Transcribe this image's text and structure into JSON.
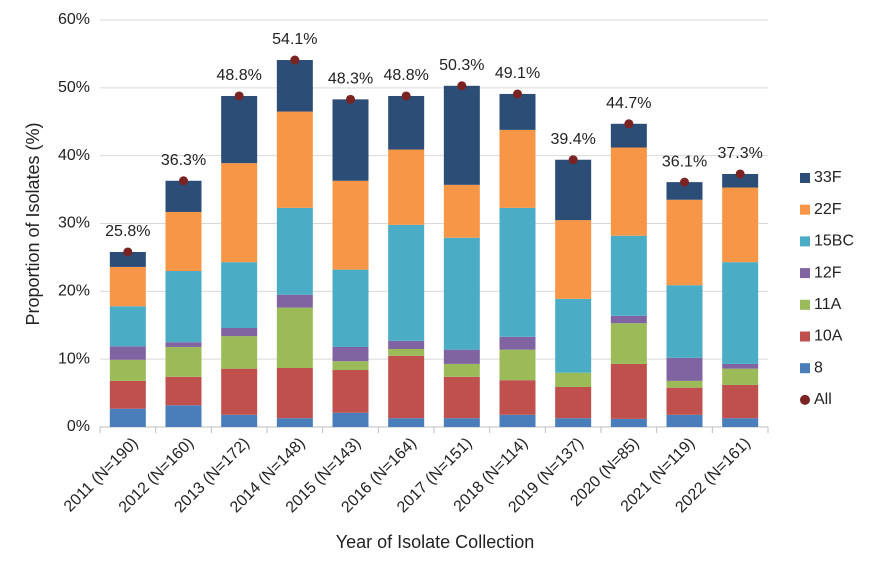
{
  "chart_data": {
    "type": "bar",
    "stacked": true,
    "x_label": "Year of Isolate Collection",
    "y_label": "Proportion of Isolates (%)",
    "categories": [
      "2011 (N=190)",
      "2012 (N=160)",
      "2013 (N=172)",
      "2014 (N=148)",
      "2015 (N=143)",
      "2016 (N=164)",
      "2017 (N=151)",
      "2018 (N=114)",
      "2019 (N=137)",
      "2020 (N=85)",
      "2021 (N=119)",
      "2022 (N=161)"
    ],
    "series": [
      {
        "name": "8",
        "color": "#4a7ebb",
        "values": [
          2.7,
          3.2,
          1.8,
          1.3,
          2.1,
          1.3,
          1.3,
          1.8,
          1.3,
          1.2,
          1.8,
          1.3
        ]
      },
      {
        "name": "10A",
        "color": "#c0504d",
        "values": [
          4.1,
          4.2,
          6.8,
          7.4,
          6.3,
          9.2,
          6.1,
          5.1,
          4.6,
          8.1,
          4.0,
          4.9
        ]
      },
      {
        "name": "11A",
        "color": "#9bbb59",
        "values": [
          3.1,
          4.4,
          4.8,
          8.9,
          1.3,
          1.0,
          1.9,
          4.5,
          2.1,
          6.0,
          1.0,
          2.4
        ]
      },
      {
        "name": "12F",
        "color": "#8064a2",
        "values": [
          2.0,
          0.7,
          1.2,
          1.9,
          2.1,
          1.2,
          2.1,
          1.9,
          0,
          1.1,
          3.4,
          0.7
        ]
      },
      {
        "name": "15BC",
        "color": "#4bacc6",
        "values": [
          5.9,
          10.5,
          9.7,
          12.8,
          11.4,
          17.1,
          16.5,
          19.0,
          10.9,
          11.8,
          10.7,
          15.0
        ]
      },
      {
        "name": "22F",
        "color": "#f79646",
        "values": [
          5.8,
          8.7,
          14.6,
          14.2,
          13.1,
          11.1,
          7.8,
          11.5,
          11.6,
          13.0,
          12.6,
          11.0
        ]
      },
      {
        "name": "33F",
        "color": "#2c4d75",
        "values": [
          2.2,
          4.6,
          9.9,
          7.6,
          12.0,
          7.9,
          14.6,
          5.3,
          8.9,
          3.5,
          2.6,
          2.0
        ]
      },
      {
        "name": "All",
        "color": "#7b2323",
        "style": "point",
        "values": [
          25.8,
          36.3,
          48.8,
          54.1,
          48.3,
          48.8,
          50.3,
          49.1,
          39.4,
          44.7,
          36.1,
          37.3
        ],
        "value_labels": [
          "25.8%",
          "36.3%",
          "48.8%",
          "54.1%",
          "48.3%",
          "48.8%",
          "50.3%",
          "49.1%",
          "39.4%",
          "44.7%",
          "36.1%",
          "37.3%"
        ]
      }
    ],
    "ylim": [
      0,
      60
    ],
    "yticks": [
      {
        "value": 0,
        "label": "0%"
      },
      {
        "value": 10,
        "label": "10%"
      },
      {
        "value": 20,
        "label": "20%"
      },
      {
        "value": 30,
        "label": "30%"
      },
      {
        "value": 40,
        "label": "40%"
      },
      {
        "value": 50,
        "label": "50%"
      },
      {
        "value": 60,
        "label": "60%"
      }
    ],
    "grid": true,
    "legend": "right",
    "legend_order": "reversed"
  }
}
